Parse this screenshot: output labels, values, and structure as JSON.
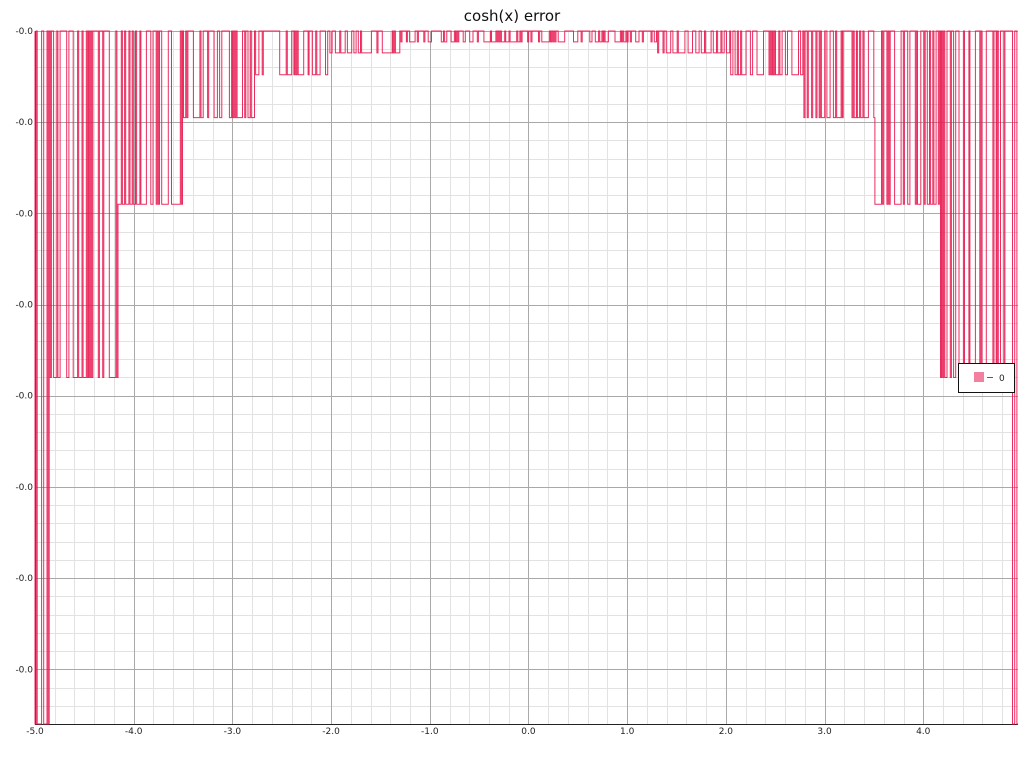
{
  "chart_data": {
    "type": "line",
    "title": "cosh(x) error",
    "xlabel": "",
    "ylabel": "",
    "xlim": [
      -5.0,
      4.96
    ],
    "ylim": [
      -7.6,
      0.0
    ],
    "x_ticks": [
      "-5.0",
      "-4.0",
      "-3.0",
      "-2.0",
      "-1.0",
      "0.0",
      "1.0",
      "2.0",
      "3.0",
      "4.0"
    ],
    "y_ticks": [
      "-0.0",
      "-0.0",
      "-0.0",
      "-0.0",
      "-0.0",
      "-0.0",
      "-0.0",
      "-0.0"
    ],
    "grid": true,
    "legend": {
      "position": "right",
      "entries": [
        "0"
      ]
    },
    "series": [
      {
        "name": "0",
        "color": "#e8174f",
        "envelope": [
          {
            "x_from": -5.0,
            "x_to": -4.86,
            "min": -7.6
          },
          {
            "x_from": -4.86,
            "x_to": -4.16,
            "min": -3.8
          },
          {
            "x_from": -4.16,
            "x_to": -3.5,
            "min": -1.9
          },
          {
            "x_from": -3.5,
            "x_to": -2.78,
            "min": -0.95
          },
          {
            "x_from": -2.78,
            "x_to": -2.04,
            "min": -0.48
          },
          {
            "x_from": -2.04,
            "x_to": -1.3,
            "min": -0.24
          },
          {
            "x_from": -1.3,
            "x_to": 1.3,
            "min": -0.12
          },
          {
            "x_from": 1.3,
            "x_to": 2.04,
            "min": -0.24
          },
          {
            "x_from": 2.04,
            "x_to": 2.78,
            "min": -0.48
          },
          {
            "x_from": 2.78,
            "x_to": 3.5,
            "min": -0.95
          },
          {
            "x_from": 3.5,
            "x_to": 4.16,
            "min": -1.9
          },
          {
            "x_from": 4.16,
            "x_to": 4.82,
            "min": -3.8
          },
          {
            "x_from": 4.82,
            "x_to": 4.96,
            "min": -7.6
          }
        ]
      }
    ]
  }
}
